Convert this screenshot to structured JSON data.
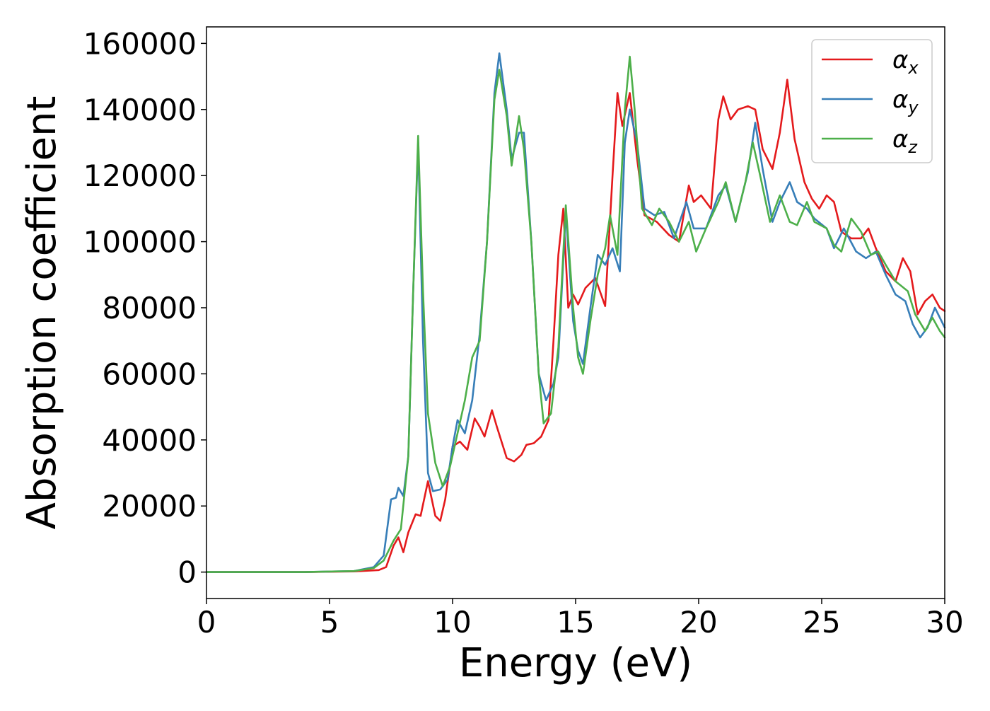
{
  "chart_data": {
    "type": "line",
    "title": "",
    "xlabel": "Energy (eV)",
    "ylabel": "Absorption coefficient",
    "xlim": [
      0,
      30
    ],
    "ylim": [
      -8000,
      165000
    ],
    "x_ticks": [
      0,
      5,
      10,
      15,
      20,
      25,
      30
    ],
    "x_tick_labels": [
      "0",
      "5",
      "10",
      "15",
      "20",
      "25",
      "30"
    ],
    "y_ticks": [
      0,
      20000,
      40000,
      60000,
      80000,
      100000,
      120000,
      140000,
      160000
    ],
    "y_tick_labels": [
      "0",
      "20000",
      "40000",
      "60000",
      "80000",
      "100000",
      "120000",
      "140000",
      "160000"
    ],
    "grid": false,
    "legend_position": "top-right",
    "series": [
      {
        "name": "αx",
        "symbol": "α",
        "subscript": "x",
        "color": "#e41a1c",
        "points": [
          [
            0,
            0
          ],
          [
            4,
            0
          ],
          [
            6,
            200
          ],
          [
            7,
            600
          ],
          [
            7.3,
            1500
          ],
          [
            7.6,
            8000
          ],
          [
            7.8,
            10500
          ],
          [
            8,
            6000
          ],
          [
            8.2,
            12000
          ],
          [
            8.5,
            17500
          ],
          [
            8.7,
            17000
          ],
          [
            9,
            27500
          ],
          [
            9.3,
            17000
          ],
          [
            9.5,
            15500
          ],
          [
            9.7,
            22000
          ],
          [
            10,
            38000
          ],
          [
            10.3,
            39500
          ],
          [
            10.6,
            37000
          ],
          [
            10.9,
            46500
          ],
          [
            11.1,
            44000
          ],
          [
            11.3,
            41000
          ],
          [
            11.6,
            49000
          ],
          [
            11.8,
            44000
          ],
          [
            12.2,
            34500
          ],
          [
            12.5,
            33500
          ],
          [
            12.8,
            35500
          ],
          [
            13,
            38500
          ],
          [
            13.3,
            39000
          ],
          [
            13.6,
            41000
          ],
          [
            13.9,
            46000
          ],
          [
            14.1,
            70000
          ],
          [
            14.3,
            96000
          ],
          [
            14.5,
            110000
          ],
          [
            14.7,
            80000
          ],
          [
            14.9,
            84000
          ],
          [
            15.1,
            81000
          ],
          [
            15.4,
            86000
          ],
          [
            15.8,
            89000
          ],
          [
            16.2,
            80500
          ],
          [
            16.5,
            120000
          ],
          [
            16.7,
            145000
          ],
          [
            16.9,
            135000
          ],
          [
            17.2,
            145000
          ],
          [
            17.5,
            125000
          ],
          [
            17.8,
            108000
          ],
          [
            18.3,
            106000
          ],
          [
            18.8,
            102000
          ],
          [
            19.2,
            100000
          ],
          [
            19.6,
            117000
          ],
          [
            19.8,
            112000
          ],
          [
            20.1,
            114000
          ],
          [
            20.5,
            110000
          ],
          [
            20.8,
            137000
          ],
          [
            21.0,
            144000
          ],
          [
            21.3,
            137000
          ],
          [
            21.6,
            140000
          ],
          [
            22,
            141000
          ],
          [
            22.3,
            140000
          ],
          [
            22.6,
            128000
          ],
          [
            23,
            122000
          ],
          [
            23.3,
            133000
          ],
          [
            23.6,
            149000
          ],
          [
            23.9,
            131000
          ],
          [
            24.3,
            118000
          ],
          [
            24.6,
            113000
          ],
          [
            24.9,
            110000
          ],
          [
            25.2,
            114000
          ],
          [
            25.5,
            112000
          ],
          [
            25.8,
            103000
          ],
          [
            26.2,
            101000
          ],
          [
            26.6,
            101000
          ],
          [
            26.9,
            104000
          ],
          [
            27.2,
            98000
          ],
          [
            27.6,
            91000
          ],
          [
            28,
            88000
          ],
          [
            28.3,
            95000
          ],
          [
            28.6,
            91000
          ],
          [
            28.9,
            78000
          ],
          [
            29.2,
            82000
          ],
          [
            29.5,
            84000
          ],
          [
            29.8,
            80000
          ],
          [
            30,
            79000
          ]
        ]
      },
      {
        "name": "αy",
        "symbol": "α",
        "subscript": "y",
        "color": "#377eb8",
        "points": [
          [
            0,
            0
          ],
          [
            4,
            0
          ],
          [
            6,
            300
          ],
          [
            6.8,
            1500
          ],
          [
            7.2,
            5000
          ],
          [
            7.5,
            22000
          ],
          [
            7.7,
            22500
          ],
          [
            7.8,
            25500
          ],
          [
            8,
            23000
          ],
          [
            8.2,
            35000
          ],
          [
            8.4,
            85000
          ],
          [
            8.6,
            130000
          ],
          [
            8.8,
            70000
          ],
          [
            9.0,
            30000
          ],
          [
            9.2,
            24500
          ],
          [
            9.5,
            25000
          ],
          [
            9.8,
            28000
          ],
          [
            10,
            38000
          ],
          [
            10.2,
            46000
          ],
          [
            10.5,
            42000
          ],
          [
            10.8,
            52000
          ],
          [
            11.1,
            72000
          ],
          [
            11.4,
            100000
          ],
          [
            11.7,
            145000
          ],
          [
            11.9,
            157000
          ],
          [
            12.2,
            140000
          ],
          [
            12.4,
            125000
          ],
          [
            12.7,
            133000
          ],
          [
            12.9,
            133000
          ],
          [
            13.2,
            100000
          ],
          [
            13.5,
            60000
          ],
          [
            13.8,
            52000
          ],
          [
            14.1,
            57000
          ],
          [
            14.3,
            65000
          ],
          [
            14.6,
            109000
          ],
          [
            14.9,
            76000
          ],
          [
            15.1,
            67000
          ],
          [
            15.3,
            63000
          ],
          [
            15.6,
            80000
          ],
          [
            15.9,
            96000
          ],
          [
            16.2,
            93000
          ],
          [
            16.5,
            98000
          ],
          [
            16.8,
            91000
          ],
          [
            17.0,
            130000
          ],
          [
            17.2,
            140000
          ],
          [
            17.5,
            130000
          ],
          [
            17.8,
            110000
          ],
          [
            18.2,
            108000
          ],
          [
            18.6,
            109000
          ],
          [
            19.0,
            101000
          ],
          [
            19.5,
            112000
          ],
          [
            19.8,
            104000
          ],
          [
            20.3,
            104000
          ],
          [
            20.8,
            114000
          ],
          [
            21.1,
            117000
          ],
          [
            21.5,
            106000
          ],
          [
            22,
            121000
          ],
          [
            22.3,
            136000
          ],
          [
            22.6,
            122000
          ],
          [
            23,
            106000
          ],
          [
            23.3,
            112000
          ],
          [
            23.7,
            118000
          ],
          [
            24.0,
            112000
          ],
          [
            24.4,
            110000
          ],
          [
            24.7,
            107000
          ],
          [
            25.2,
            104000
          ],
          [
            25.5,
            98000
          ],
          [
            25.9,
            104000
          ],
          [
            26.4,
            97000
          ],
          [
            26.8,
            95000
          ],
          [
            27.2,
            97000
          ],
          [
            27.6,
            90000
          ],
          [
            28,
            84000
          ],
          [
            28.4,
            82000
          ],
          [
            28.7,
            75000
          ],
          [
            29.0,
            71000
          ],
          [
            29.3,
            74000
          ],
          [
            29.6,
            80000
          ],
          [
            30,
            74000
          ]
        ]
      },
      {
        "name": "αz",
        "symbol": "α",
        "subscript": "z",
        "color": "#4daf4a",
        "points": [
          [
            0,
            0
          ],
          [
            4,
            0
          ],
          [
            6,
            300
          ],
          [
            6.8,
            1200
          ],
          [
            7.2,
            3500
          ],
          [
            7.6,
            9500
          ],
          [
            7.9,
            13000
          ],
          [
            8.2,
            35000
          ],
          [
            8.4,
            85000
          ],
          [
            8.6,
            132000
          ],
          [
            8.8,
            85000
          ],
          [
            9.0,
            48000
          ],
          [
            9.3,
            33000
          ],
          [
            9.6,
            26000
          ],
          [
            9.9,
            32000
          ],
          [
            10.2,
            42000
          ],
          [
            10.5,
            52000
          ],
          [
            10.8,
            65000
          ],
          [
            11.1,
            70000
          ],
          [
            11.4,
            100000
          ],
          [
            11.7,
            143000
          ],
          [
            11.9,
            152000
          ],
          [
            12.2,
            138000
          ],
          [
            12.4,
            123000
          ],
          [
            12.7,
            138000
          ],
          [
            12.9,
            128000
          ],
          [
            13.2,
            100000
          ],
          [
            13.5,
            60000
          ],
          [
            13.7,
            45000
          ],
          [
            14.0,
            48000
          ],
          [
            14.3,
            68000
          ],
          [
            14.6,
            111000
          ],
          [
            14.9,
            80000
          ],
          [
            15.1,
            65000
          ],
          [
            15.3,
            60000
          ],
          [
            15.6,
            76000
          ],
          [
            15.9,
            90000
          ],
          [
            16.2,
            98000
          ],
          [
            16.4,
            108000
          ],
          [
            16.7,
            96000
          ],
          [
            17.0,
            140000
          ],
          [
            17.2,
            156000
          ],
          [
            17.4,
            140000
          ],
          [
            17.7,
            110000
          ],
          [
            18.1,
            105000
          ],
          [
            18.4,
            110000
          ],
          [
            18.8,
            106000
          ],
          [
            19.2,
            100000
          ],
          [
            19.6,
            106000
          ],
          [
            19.9,
            97000
          ],
          [
            20.3,
            104000
          ],
          [
            20.8,
            112000
          ],
          [
            21.1,
            118000
          ],
          [
            21.5,
            106000
          ],
          [
            21.9,
            118000
          ],
          [
            22.2,
            130000
          ],
          [
            22.5,
            120000
          ],
          [
            22.9,
            106000
          ],
          [
            23.3,
            114000
          ],
          [
            23.7,
            106000
          ],
          [
            24.0,
            105000
          ],
          [
            24.4,
            112000
          ],
          [
            24.7,
            106000
          ],
          [
            25.2,
            104000
          ],
          [
            25.5,
            99000
          ],
          [
            25.8,
            97000
          ],
          [
            26.2,
            107000
          ],
          [
            26.6,
            103000
          ],
          [
            27.0,
            96000
          ],
          [
            27.3,
            97000
          ],
          [
            27.6,
            93000
          ],
          [
            28,
            88000
          ],
          [
            28.5,
            85000
          ],
          [
            28.8,
            78000
          ],
          [
            29.2,
            73000
          ],
          [
            29.5,
            77000
          ],
          [
            29.8,
            73000
          ],
          [
            30,
            71000
          ]
        ]
      }
    ]
  }
}
